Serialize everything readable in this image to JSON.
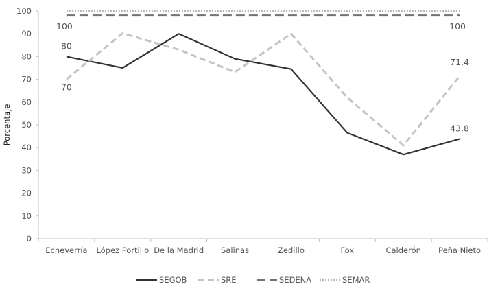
{
  "chart_data": {
    "type": "line",
    "title": "",
    "xlabel": "",
    "ylabel": "Porcentaje",
    "ylim": [
      0,
      100
    ],
    "yticks": [
      "0",
      "10",
      "20",
      "30",
      "40",
      "50",
      "60",
      "70",
      "80",
      "90",
      "100"
    ],
    "categories": [
      "Echeverría",
      "López Portillo",
      "De la Madrid",
      "Salinas",
      "Zedillo",
      "Fox",
      "Calderón",
      "Peña Nieto"
    ],
    "legend_position": "bottom",
    "series": [
      {
        "name": "SEGOB",
        "color": "#333333",
        "dash": "solid",
        "values": [
          80,
          75,
          90,
          79,
          74.5,
          46.5,
          37,
          43.8
        ]
      },
      {
        "name": "SRE",
        "color": "#c4c4c4",
        "dash": "dashed",
        "values": [
          70,
          90.2,
          83,
          73.2,
          90,
          62,
          41,
          71.4
        ]
      },
      {
        "name": "SEDENA",
        "color": "#737373",
        "dash": "longdash",
        "values": [
          98,
          98,
          98,
          98,
          98,
          98,
          98,
          98
        ]
      },
      {
        "name": "SEMAR",
        "color": "#b5b5b5",
        "dash": "dotted",
        "values": [
          100,
          100,
          100,
          100,
          100,
          100,
          100,
          100
        ]
      }
    ],
    "data_labels": [
      {
        "series": "SEGOB",
        "index": 0,
        "text": "80"
      },
      {
        "series": "SRE",
        "index": 0,
        "text": "70"
      },
      {
        "series": "SEMAR",
        "index": 0,
        "text": "100"
      },
      {
        "series": "SEMAR",
        "index": 7,
        "text": "100"
      },
      {
        "series": "SRE",
        "index": 7,
        "text": "71.4"
      },
      {
        "series": "SEGOB",
        "index": 7,
        "text": "43.8"
      }
    ]
  }
}
